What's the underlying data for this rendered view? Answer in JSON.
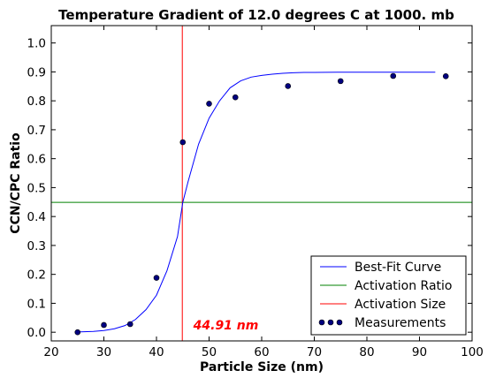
{
  "chart_data": {
    "type": "scatter",
    "title": "Temperature Gradient of 12.0 degrees C at 1000. mb",
    "xlabel": "Particle Size (nm)",
    "ylabel": "CCN/CPC Ratio",
    "xlim": [
      20,
      100
    ],
    "ylim": [
      -0.03,
      1.06
    ],
    "xticks": [
      "20",
      "30",
      "40",
      "50",
      "60",
      "70",
      "80",
      "90",
      "100"
    ],
    "yticks": [
      "0.0",
      "0.1",
      "0.2",
      "0.3",
      "0.4",
      "0.5",
      "0.6",
      "0.7",
      "0.8",
      "0.9",
      "1.0"
    ],
    "grid": false,
    "legend_position": "bottom-right",
    "series": [
      {
        "name": "Best-Fit Curve",
        "kind": "line",
        "color": "#0000ff",
        "x": [
          25,
          28,
          30,
          32,
          34,
          36,
          38,
          40,
          42,
          44,
          45,
          46,
          48,
          50,
          52,
          54,
          56,
          58,
          60,
          62,
          64,
          66,
          68,
          70,
          75,
          80,
          85,
          90,
          93
        ],
        "y": [
          0.001,
          0.003,
          0.006,
          0.012,
          0.023,
          0.044,
          0.078,
          0.128,
          0.213,
          0.331,
          0.449,
          0.52,
          0.65,
          0.74,
          0.8,
          0.845,
          0.869,
          0.882,
          0.888,
          0.892,
          0.895,
          0.897,
          0.898,
          0.898,
          0.899,
          0.899,
          0.899,
          0.899,
          0.899
        ]
      },
      {
        "name": "Activation Ratio",
        "kind": "hline",
        "color": "#008000",
        "y": 0.449
      },
      {
        "name": "Activation Size",
        "kind": "vline",
        "color": "#ff0000",
        "x": 44.91
      },
      {
        "name": "Measurements",
        "kind": "scatter",
        "color": "#00007f",
        "x": [
          25,
          30,
          35,
          40,
          45,
          50,
          55,
          65,
          75,
          85,
          95
        ],
        "y": [
          0.0,
          0.025,
          0.028,
          0.188,
          0.657,
          0.79,
          0.812,
          0.851,
          0.868,
          0.886,
          0.885
        ]
      }
    ],
    "annotations": [
      {
        "text": "44.91 nm",
        "x": 47,
        "y": 0.01,
        "color": "#ff0000"
      }
    ]
  }
}
